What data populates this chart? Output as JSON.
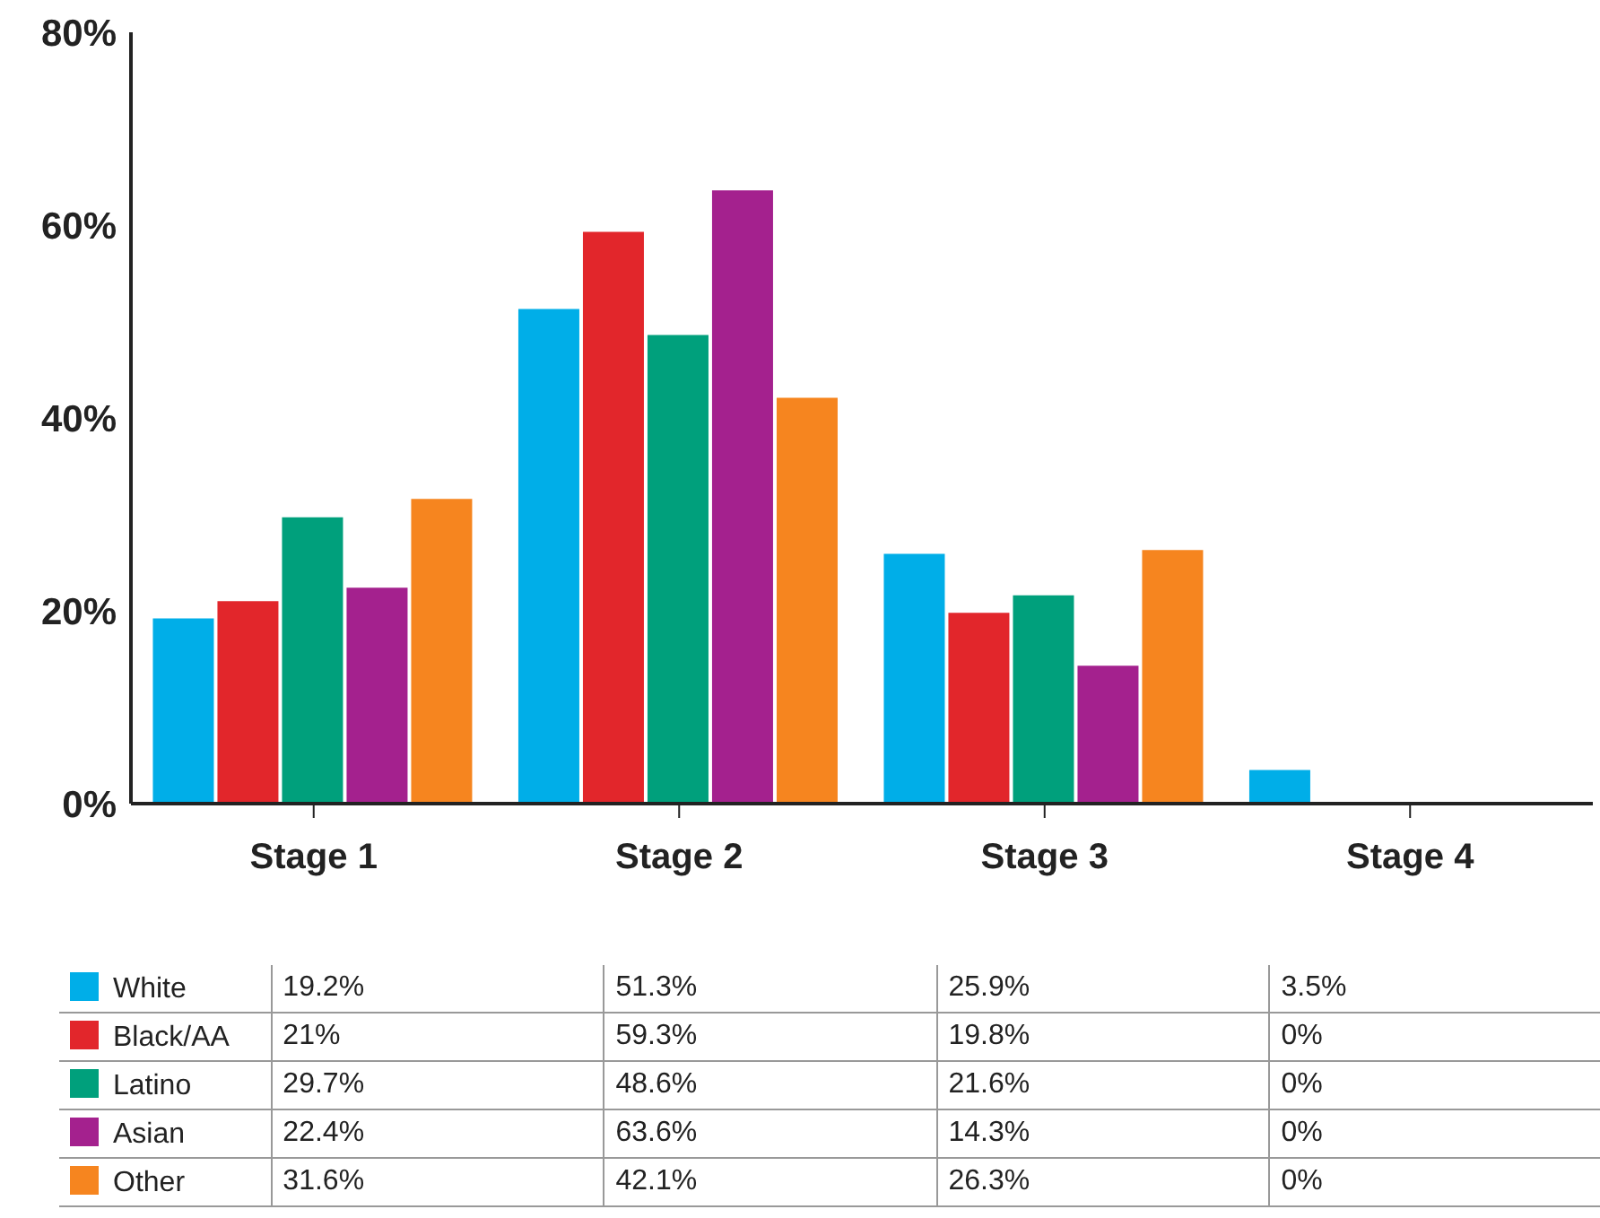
{
  "chart_data": {
    "type": "bar",
    "categories": [
      "Stage 1",
      "Stage 2",
      "Stage 3",
      "Stage 4"
    ],
    "series": [
      {
        "name": "White",
        "color": "#00aee8",
        "values": [
          19.2,
          51.3,
          25.9,
          3.5
        ],
        "value_labels": [
          "19.2%",
          "51.3%",
          "25.9%",
          "3.5%"
        ]
      },
      {
        "name": "Black/AA",
        "color": "#e2262b",
        "values": [
          21,
          59.3,
          19.8,
          0
        ],
        "value_labels": [
          "21%",
          "59.3%",
          "19.8%",
          "0%"
        ]
      },
      {
        "name": "Latino",
        "color": "#00a07c",
        "values": [
          29.7,
          48.6,
          21.6,
          0
        ],
        "value_labels": [
          "29.7%",
          "48.6%",
          "21.6%",
          "0%"
        ]
      },
      {
        "name": "Asian",
        "color": "#a4218e",
        "values": [
          22.4,
          63.6,
          14.3,
          0
        ],
        "value_labels": [
          "22.4%",
          "63.6%",
          "14.3%",
          "0%"
        ]
      },
      {
        "name": "Other",
        "color": "#f6851f",
        "values": [
          31.6,
          42.1,
          26.3,
          0
        ],
        "value_labels": [
          "31.6%",
          "42.1%",
          "26.3%",
          "0%"
        ]
      }
    ],
    "ylim": [
      0,
      80
    ],
    "yticks": [
      {
        "value": 0,
        "label": "0%"
      },
      {
        "value": 20,
        "label": "20%"
      },
      {
        "value": 40,
        "label": "40%"
      },
      {
        "value": 60,
        "label": "60%"
      },
      {
        "value": 80,
        "label": "80%"
      }
    ],
    "grid": false,
    "legend": "bottom"
  }
}
